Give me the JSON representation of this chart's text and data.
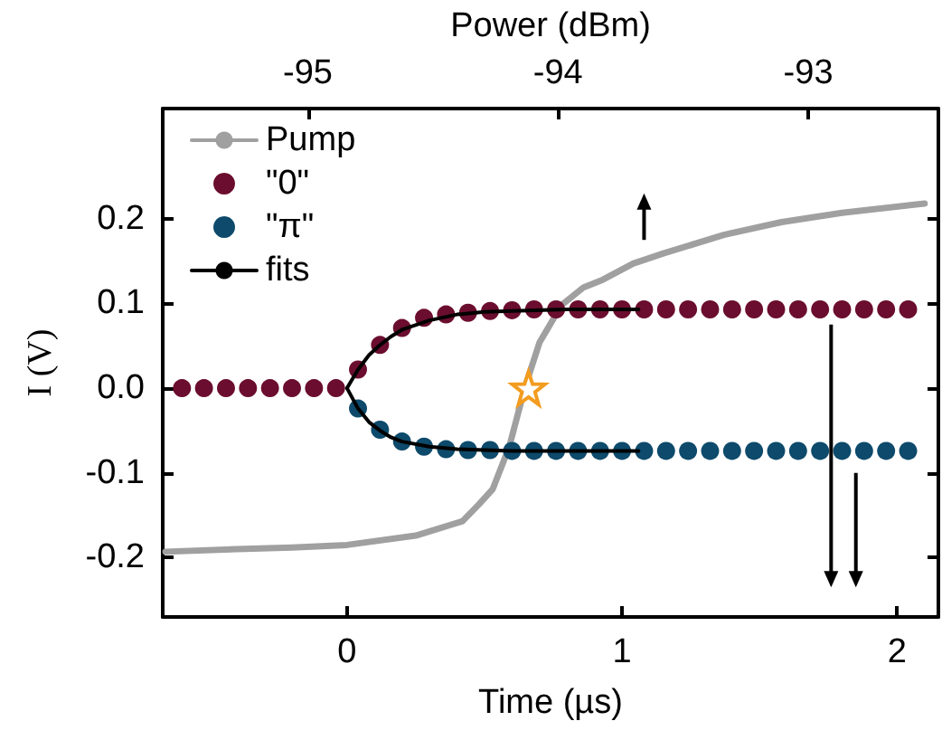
{
  "chart_data": {
    "type": "scatter",
    "xlabel": "Time (µs)",
    "ylabel": "I (V)",
    "x2label": "Power (dBm)",
    "xlim": [
      -0.67,
      2.15
    ],
    "xticks": [
      0,
      1,
      2
    ],
    "x2lim": [
      -95.58,
      -92.48
    ],
    "x2ticks": [
      -95,
      -94,
      -93
    ],
    "ylim": [
      -0.27,
      0.33
    ],
    "yticks": [
      -0.2,
      -0.1,
      {
        "value": 0,
        "label": "0.0"
      },
      0.1,
      0.2
    ],
    "grid": false,
    "legend": "top left",
    "series": [
      {
        "name": "Pump",
        "type": "line",
        "marker": "none",
        "color": "#a0a0a0",
        "x": [
          -0.66,
          -0.4,
          -0.2,
          0,
          0.25,
          0.42,
          0.48,
          0.53,
          0.59,
          0.646,
          0.7,
          0.78,
          0.86,
          0.93,
          1.04,
          1.15,
          1.37,
          1.58,
          1.8,
          2.1
        ],
        "values": [
          -0.193,
          -0.19,
          -0.188,
          -0.185,
          -0.174,
          -0.157,
          -0.137,
          -0.119,
          -0.069,
          0,
          0.054,
          0.098,
          0.119,
          0.128,
          0.147,
          0.159,
          0.181,
          0.196,
          0.207,
          0.218
        ]
      },
      {
        "name": "\"0\"",
        "marker": "circle",
        "color": "#6b0d2e",
        "x": [
          -0.6,
          -0.52,
          -0.44,
          -0.36,
          -0.28,
          -0.2,
          -0.12,
          -0.04,
          0.04,
          0.12,
          0.2,
          0.28,
          0.36,
          0.44,
          0.52,
          0.6,
          0.68,
          0.76,
          0.84,
          0.92,
          1.0,
          1.08,
          1.16,
          1.24,
          1.32,
          1.4,
          1.48,
          1.56,
          1.64,
          1.72,
          1.8,
          1.88,
          1.96,
          2.04
        ],
        "values": [
          0,
          0,
          0,
          0,
          0,
          0,
          0,
          0,
          0.022,
          0.051,
          0.071,
          0.083,
          0.087,
          0.089,
          0.091,
          0.092,
          0.093,
          0.093,
          0.093,
          0.093,
          0.093,
          0.093,
          0.093,
          0.093,
          0.093,
          0.093,
          0.093,
          0.093,
          0.093,
          0.093,
          0.093,
          0.093,
          0.093,
          0.093
        ]
      },
      {
        "name": "\"π\"",
        "marker": "circle",
        "color": "#0d4a6b",
        "x": [
          0.04,
          0.12,
          0.2,
          0.28,
          0.36,
          0.44,
          0.52,
          0.6,
          0.68,
          0.76,
          0.84,
          0.92,
          1.0,
          1.08,
          1.16,
          1.24,
          1.32,
          1.4,
          1.48,
          1.56,
          1.64,
          1.72,
          1.8,
          1.88,
          1.96,
          2.04
        ],
        "values": [
          -0.024,
          -0.049,
          -0.063,
          -0.069,
          -0.072,
          -0.073,
          -0.073,
          -0.074,
          -0.074,
          -0.074,
          -0.074,
          -0.074,
          -0.074,
          -0.074,
          -0.074,
          -0.074,
          -0.074,
          -0.074,
          -0.074,
          -0.074,
          -0.074,
          -0.074,
          -0.074,
          -0.074,
          -0.074,
          -0.074
        ]
      },
      {
        "name": "fits",
        "type": "line",
        "marker": "none",
        "color": "#000000",
        "x": [
          0,
          0.04,
          0.08,
          0.12,
          0.16,
          0.2,
          0.3,
          0.4,
          0.5,
          0.6,
          0.8,
          1.06
        ],
        "values": [
          0,
          0.022,
          0.039,
          0.051,
          0.061,
          0.069,
          0.08,
          0.087,
          0.09,
          0.091,
          0.093,
          0.093
        ]
      },
      {
        "type": "line",
        "marker": "none",
        "color": "#000000",
        "x": [
          0,
          0.04,
          0.08,
          0.12,
          0.16,
          0.2,
          0.3,
          0.4,
          0.5,
          0.6,
          0.8,
          1.06
        ],
        "values": [
          0,
          -0.024,
          -0.04,
          -0.05,
          -0.058,
          -0.063,
          -0.069,
          -0.072,
          -0.073,
          -0.074,
          -0.074,
          -0.074
        ]
      },
      {
        "marker": "star",
        "color": "#f39c1f",
        "x": [
          0.66
        ],
        "values": [
          0
        ]
      }
    ]
  }
}
